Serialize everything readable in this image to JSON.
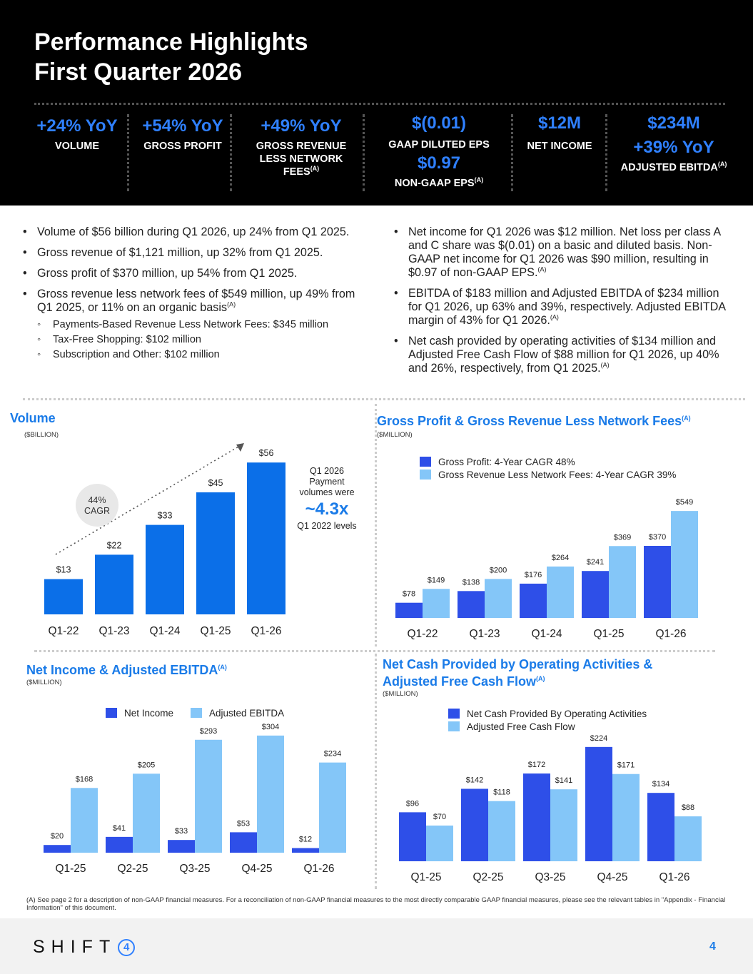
{
  "header": {
    "title_line1": "Performance Highlights",
    "title_line2": "First Quarter 2026",
    "kpis": [
      {
        "value": "+24% YoY",
        "label": "VOLUME"
      },
      {
        "value": "+54% YoY",
        "label": "GROSS PROFIT"
      },
      {
        "value": "+49% YoY",
        "label": "GROSS REVENUE LESS NETWORK FEES",
        "note": "(A)"
      },
      {
        "value": "$(0.01)",
        "label": "GAAP DILUTED EPS",
        "value2": "$0.97",
        "label2": "NON-GAAP EPS",
        "note": "(A)"
      },
      {
        "value": "$12M",
        "label": "NET INCOME"
      },
      {
        "value": "$234M",
        "value2": "+39% YoY",
        "label": "ADJUSTED EBITDA",
        "note": "(A)"
      }
    ]
  },
  "bullets_left": [
    "Volume of $56 billion during Q1 2026, up 24% from Q1 2025.",
    "Gross revenue of $1,121 million, up 32% from Q1 2025.",
    "Gross profit of $370 million, up 54% from Q1 2025.",
    "Gross revenue less network fees of $549 million, up 49% from Q1 2025, or 11% on an organic basis"
  ],
  "bullets_left_note": "(A)",
  "sub_bullets": [
    "Payments-Based Revenue Less Network Fees: $345 million",
    "Tax-Free Shopping: $102 million",
    "Subscription and Other: $102 million"
  ],
  "bullets_right": [
    {
      "text": "Net income for Q1 2026 was $12 million. Net loss per class A and C share was $(0.01) on a basic and diluted basis. Non-GAAP net income for Q1 2026 was $90 million, resulting in $0.97 of non-GAAP EPS.",
      "note": "(A)"
    },
    {
      "text": "EBITDA of $183 million and Adjusted EBITDA of $234 million for Q1 2026, up 63% and 39%, respectively. Adjusted EBITDA margin of 43% for Q1 2026.",
      "note": "(A)"
    },
    {
      "text": "Net cash provided by operating activities of $134 million and Adjusted Free Cash Flow of $88 million for Q1 2026, up 40% and 26%, respectively, from Q1 2025.",
      "note": "(A)"
    }
  ],
  "volume_annotation": {
    "cagr_line1": "44%",
    "cagr_line2": "CAGR",
    "text1": "Q1 2026",
    "text2": "Payment",
    "text3": "volumes were",
    "big": "~4.3x",
    "text4": "Q1 2022 levels"
  },
  "colors": {
    "dark_blue": "#0b6fe8",
    "navy_blue": "#2e4fe8",
    "light_blue": "#84c6f8",
    "title_blue": "#1a7be8"
  },
  "chart_data": [
    {
      "type": "bar",
      "title": "Volume",
      "unit": "($BILLION)",
      "categories": [
        "Q1-22",
        "Q1-23",
        "Q1-24",
        "Q1-25",
        "Q1-26"
      ],
      "values": [
        13,
        22,
        33,
        45,
        56
      ],
      "labels": [
        "$13",
        "$22",
        "$33",
        "$45",
        "$56"
      ]
    },
    {
      "type": "bar",
      "title": "Gross Profit & Gross Revenue Less Network Fees",
      "title_note": "(A)",
      "unit": "($MILLION)",
      "categories": [
        "Q1-22",
        "Q1-23",
        "Q1-24",
        "Q1-25",
        "Q1-26"
      ],
      "series": [
        {
          "name": "Gross Profit: 4-Year CAGR 48%",
          "values": [
            78,
            138,
            176,
            241,
            370
          ],
          "labels": [
            "$78",
            "$138",
            "$176",
            "$241",
            "$370"
          ]
        },
        {
          "name": "Gross Revenue Less Network Fees: 4-Year CAGR 39%",
          "values": [
            149,
            200,
            264,
            369,
            549
          ],
          "labels": [
            "$149",
            "$200",
            "$264",
            "$369",
            "$549"
          ]
        }
      ]
    },
    {
      "type": "bar",
      "title": "Net Income & Adjusted EBITDA",
      "title_note": "(A)",
      "unit": "($MILLION)",
      "categories": [
        "Q1-25",
        "Q2-25",
        "Q3-25",
        "Q4-25",
        "Q1-26"
      ],
      "series": [
        {
          "name": "Net Income",
          "values": [
            20,
            41,
            33,
            53,
            12
          ],
          "labels": [
            "$20",
            "$41",
            "$33",
            "$53",
            "$12"
          ]
        },
        {
          "name": "Adjusted EBITDA",
          "values": [
            168,
            205,
            293,
            304,
            234
          ],
          "labels": [
            "$168",
            "$205",
            "$293",
            "$304",
            "$234"
          ]
        }
      ]
    },
    {
      "type": "bar",
      "title_line1": "Net Cash Provided by Operating Activities &",
      "title_line2": "Adjusted Free Cash Flow",
      "title_note": "(A)",
      "unit": "($MILLION)",
      "categories": [
        "Q1-25",
        "Q2-25",
        "Q3-25",
        "Q4-25",
        "Q1-26"
      ],
      "series": [
        {
          "name": "Net Cash Provided By Operating Activities",
          "values": [
            96,
            142,
            172,
            224,
            134
          ],
          "labels": [
            "$96",
            "$142",
            "$172",
            "$224",
            "$134"
          ]
        },
        {
          "name": "Adjusted Free Cash Flow",
          "values": [
            70,
            118,
            141,
            171,
            88
          ],
          "labels": [
            "$70",
            "$118",
            "$141",
            "$171",
            "$88"
          ]
        }
      ]
    }
  ],
  "footnote": "(A) See page 2 for a description of non-GAAP financial measures. For a reconciliation of non-GAAP financial measures to the most directly comparable GAAP financial measures, please see the relevant tables in \"Appendix - Financial Information\" of this document.",
  "footer": {
    "logo_text": "SHIFT",
    "logo_digit": "4",
    "page_number": "4"
  }
}
